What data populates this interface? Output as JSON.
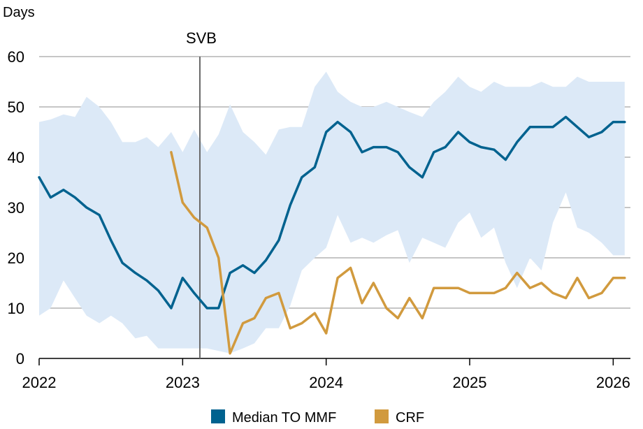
{
  "chart_data": {
    "type": "line",
    "ylabel": "Days",
    "ylim": [
      0,
      60
    ],
    "yticks": [
      "0",
      "10",
      "20",
      "30",
      "40",
      "50",
      "60"
    ],
    "xlim": [
      2022.0,
      2026.12
    ],
    "xticks": [
      {
        "value": 2022,
        "label": "2022"
      },
      {
        "value": 2023,
        "label": "2023"
      },
      {
        "value": 2024,
        "label": "2024"
      },
      {
        "value": 2025,
        "label": "2025"
      },
      {
        "value": 2026,
        "label": "2026"
      }
    ],
    "grid": "horizontal",
    "legend_position": "bottom",
    "annotation": {
      "label": "SVB",
      "x": 2023.12
    },
    "band": {
      "name": "",
      "color": "#dce9f7",
      "x": [
        2022.0,
        2022.08,
        2022.17,
        2022.25,
        2022.33,
        2022.42,
        2022.5,
        2022.58,
        2022.67,
        2022.75,
        2022.83,
        2022.92,
        2023.0,
        2023.08,
        2023.17,
        2023.25,
        2023.33,
        2023.42,
        2023.5,
        2023.58,
        2023.67,
        2023.75,
        2023.83,
        2023.92,
        2024.0,
        2024.08,
        2024.17,
        2024.25,
        2024.33,
        2024.42,
        2024.5,
        2024.58,
        2024.67,
        2024.75,
        2024.83,
        2024.92,
        2025.0,
        2025.08,
        2025.17,
        2025.25,
        2025.33,
        2025.42,
        2025.5,
        2025.58,
        2025.67,
        2025.75,
        2025.83,
        2025.92,
        2026.0,
        2026.08
      ],
      "upper": [
        47,
        47.5,
        48.5,
        48,
        52,
        50,
        47,
        43,
        43,
        44,
        42,
        45,
        41,
        45.5,
        41,
        44.5,
        50.5,
        45,
        43,
        40.5,
        45.5,
        46,
        46,
        54,
        57,
        53,
        51,
        50,
        50,
        51,
        50,
        49,
        48,
        51,
        53,
        56,
        54,
        53,
        55,
        54,
        54,
        54,
        55,
        54,
        54,
        56,
        55,
        55,
        55,
        55
      ],
      "lower": [
        8.5,
        10,
        15.5,
        12,
        8.5,
        7,
        8.5,
        7,
        4,
        4.5,
        2,
        2,
        2,
        2,
        2,
        1.5,
        1,
        2,
        3,
        6,
        6,
        10.5,
        17.5,
        20,
        22,
        28.5,
        23,
        24,
        23,
        24.5,
        25.5,
        19,
        24,
        23,
        22,
        27,
        29,
        24,
        26,
        19,
        14,
        20,
        17.5,
        27,
        33,
        26,
        25,
        23,
        20.5,
        20.5
      ]
    },
    "series": [
      {
        "name": "Median TO MMF",
        "color": "#00628f",
        "x": [
          2022.0,
          2022.08,
          2022.17,
          2022.25,
          2022.33,
          2022.42,
          2022.5,
          2022.58,
          2022.67,
          2022.75,
          2022.83,
          2022.92,
          2023.0,
          2023.08,
          2023.17,
          2023.25,
          2023.33,
          2023.42,
          2023.5,
          2023.58,
          2023.67,
          2023.75,
          2023.83,
          2023.92,
          2024.0,
          2024.08,
          2024.17,
          2024.25,
          2024.33,
          2024.42,
          2024.5,
          2024.58,
          2024.67,
          2024.75,
          2024.83,
          2024.92,
          2025.0,
          2025.08,
          2025.17,
          2025.25,
          2025.33,
          2025.42,
          2025.5,
          2025.58,
          2025.67,
          2025.75,
          2025.83,
          2025.92,
          2026.0,
          2026.08
        ],
        "values": [
          36,
          32,
          33.5,
          32,
          30,
          28.5,
          23.5,
          19,
          17,
          15.5,
          13.5,
          10,
          16,
          13,
          10,
          10,
          17,
          18.5,
          17,
          19.5,
          23.5,
          30.5,
          36,
          38,
          45,
          47,
          45,
          41,
          42,
          42,
          41,
          38,
          36,
          41,
          42,
          45,
          43,
          42,
          41.5,
          39.5,
          43,
          46,
          46,
          46,
          48,
          46,
          44,
          45,
          47,
          47
        ]
      },
      {
        "name": "CRF",
        "color": "#d19a3e",
        "x": [
          2022.92,
          2023.0,
          2023.08,
          2023.17,
          2023.25,
          2023.33,
          2023.42,
          2023.5,
          2023.58,
          2023.67,
          2023.75,
          2023.83,
          2023.92,
          2024.0,
          2024.08,
          2024.17,
          2024.25,
          2024.33,
          2024.42,
          2024.5,
          2024.58,
          2024.67,
          2024.75,
          2024.83,
          2024.92,
          2025.0,
          2025.08,
          2025.17,
          2025.25,
          2025.33,
          2025.42,
          2025.5,
          2025.58,
          2025.67,
          2025.75,
          2025.83,
          2025.92,
          2026.0,
          2026.08
        ],
        "values": [
          41,
          31,
          28,
          26,
          20,
          1,
          7,
          8,
          12,
          13,
          6,
          7,
          9,
          5,
          16,
          18,
          11,
          15,
          10,
          8,
          12,
          8,
          14,
          14,
          14,
          13,
          13,
          13,
          14,
          17,
          14,
          15,
          13,
          12,
          16,
          12,
          13,
          16,
          16
        ]
      }
    ]
  }
}
